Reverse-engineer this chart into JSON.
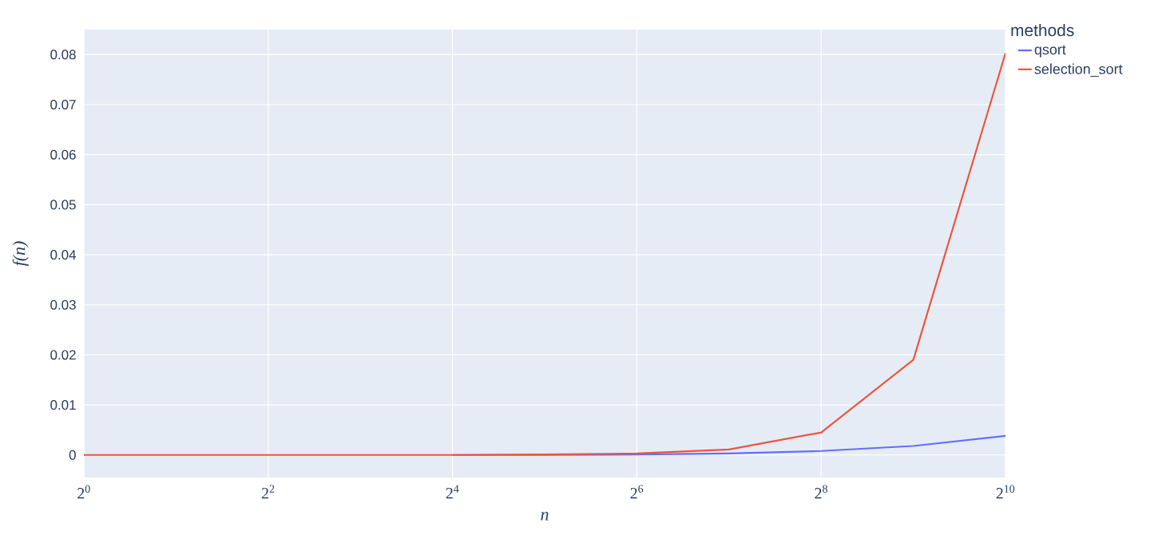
{
  "chart_data": {
    "type": "line",
    "xlabel": "n",
    "ylabel": "f(n)",
    "legend_title": "methods",
    "log": "x",
    "x": [
      1,
      2,
      4,
      8,
      16,
      32,
      64,
      128,
      256,
      512,
      1024
    ],
    "series": [
      {
        "name": "qsort",
        "color": "#636efa",
        "values": [
          null,
          null,
          null,
          null,
          0,
          0,
          0.0001,
          0.0003,
          0.0008,
          0.0018,
          0.0038
        ]
      },
      {
        "name": "selection_sort",
        "color": "#ef553b",
        "values": [
          0,
          0,
          0,
          0,
          0,
          0.0001,
          0.0003,
          0.0011,
          0.0045,
          0.019,
          0.0803
        ]
      }
    ],
    "xlim": [
      1,
      1024
    ],
    "xticks": [
      {
        "value": 1,
        "label": "2$^{0}$"
      },
      {
        "value": 4,
        "label": "2$^{2}$"
      },
      {
        "value": 16,
        "label": "2$^{4}$"
      },
      {
        "value": 64,
        "label": "2$^{6}$"
      },
      {
        "value": 256,
        "label": "2$^{8}$"
      },
      {
        "value": 1024,
        "label": "2$^{10}$"
      }
    ],
    "ylim": [
      -0.0045,
      0.085
    ],
    "yticks": [
      0,
      0.01,
      0.02,
      0.03,
      0.04,
      0.05,
      0.06,
      0.07,
      0.08
    ],
    "grid": true,
    "legend": "top right",
    "line_style": "solid"
  }
}
